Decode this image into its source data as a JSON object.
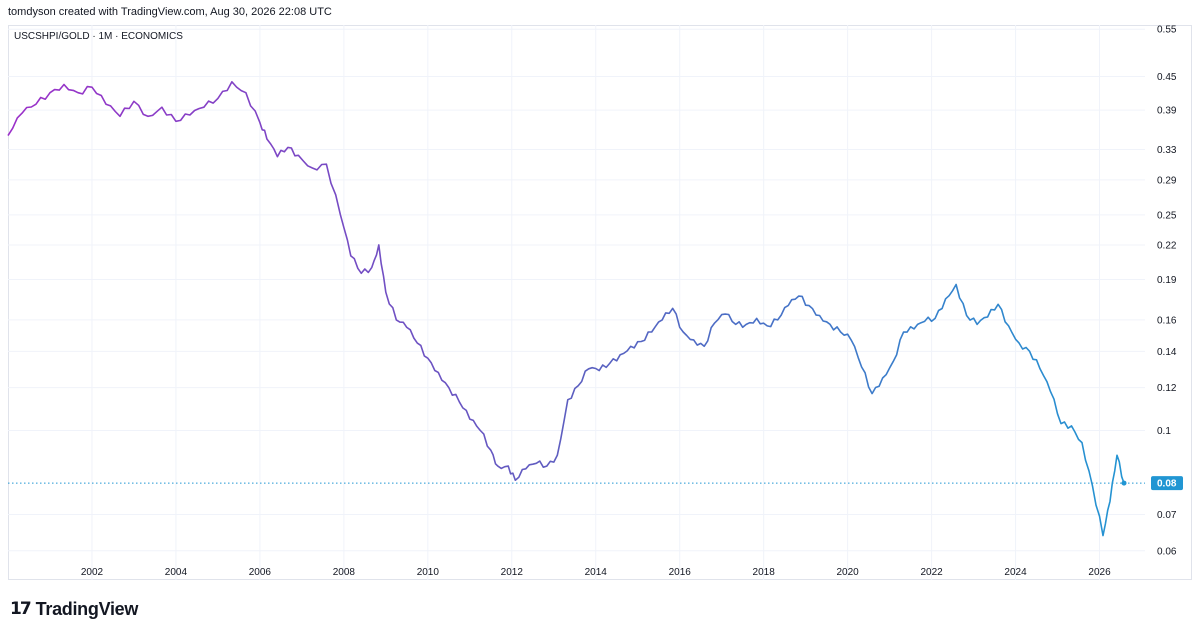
{
  "header": {
    "attribution": "tomdyson created with TradingView.com, Aug 30, 2026 22:08 UTC"
  },
  "symbol": {
    "label": "USCSHPI/GOLD · 1M · ECONOMICS"
  },
  "footer": {
    "brand_mark": "17",
    "brand_name": "TradingView"
  },
  "colors": {
    "line_start": "#9b30c9",
    "line_mid": "#5c5fc0",
    "line_end": "#2196d3",
    "last_price_badge": "#2196d3",
    "grid": "#f0f3fa"
  },
  "chart_data": {
    "type": "line",
    "title": "USCSHPI/GOLD · 1M · ECONOMICS",
    "xlabel": "",
    "ylabel": "",
    "y_scale": "log",
    "ylim": [
      0.053,
      0.56
    ],
    "xlim": [
      "2000-01",
      "2027-02"
    ],
    "grid": true,
    "x_ticks": [
      "2002",
      "2004",
      "2006",
      "2008",
      "2010",
      "2012",
      "2014",
      "2016",
      "2018",
      "2020",
      "2022",
      "2024",
      "2026"
    ],
    "y_ticks": [
      "0.55",
      "0.45",
      "0.39",
      "0.33",
      "0.29",
      "0.25",
      "0.22",
      "0.19",
      "0.16",
      "0.14",
      "0.12",
      "0.1",
      "0.07",
      "0.06"
    ],
    "last_value_label": "0.08",
    "last_value": 0.08,
    "series": [
      {
        "points": [
          [
            "2000-01",
            0.35
          ],
          [
            "2000-05",
            0.385
          ],
          [
            "2000-09",
            0.4
          ],
          [
            "2001-01",
            0.42
          ],
          [
            "2001-05",
            0.435
          ],
          [
            "2001-09",
            0.42
          ],
          [
            "2002-01",
            0.43
          ],
          [
            "2002-05",
            0.4
          ],
          [
            "2002-09",
            0.38
          ],
          [
            "2003-01",
            0.405
          ],
          [
            "2003-05",
            0.38
          ],
          [
            "2003-09",
            0.395
          ],
          [
            "2004-01",
            0.372
          ],
          [
            "2004-05",
            0.382
          ],
          [
            "2004-09",
            0.395
          ],
          [
            "2005-01",
            0.41
          ],
          [
            "2005-05",
            0.44
          ],
          [
            "2005-09",
            0.42
          ],
          [
            "2006-01",
            0.37
          ],
          [
            "2006-03",
            0.345
          ],
          [
            "2006-06",
            0.32
          ],
          [
            "2006-09",
            0.333
          ],
          [
            "2006-12",
            0.322
          ],
          [
            "2007-04",
            0.305
          ],
          [
            "2007-08",
            0.31
          ],
          [
            "2007-12",
            0.25
          ],
          [
            "2008-03",
            0.21
          ],
          [
            "2008-06",
            0.195
          ],
          [
            "2008-09",
            0.2
          ],
          [
            "2008-11",
            0.22
          ],
          [
            "2009-01",
            0.18
          ],
          [
            "2009-04",
            0.16
          ],
          [
            "2009-07",
            0.155
          ],
          [
            "2009-10",
            0.145
          ],
          [
            "2010-01",
            0.136
          ],
          [
            "2010-04",
            0.128
          ],
          [
            "2010-07",
            0.12
          ],
          [
            "2010-10",
            0.113
          ],
          [
            "2011-01",
            0.105
          ],
          [
            "2011-04",
            0.1
          ],
          [
            "2011-07",
            0.092
          ],
          [
            "2011-09",
            0.086
          ],
          [
            "2011-12",
            0.086
          ],
          [
            "2012-02",
            0.081
          ],
          [
            "2012-05",
            0.085
          ],
          [
            "2012-08",
            0.087
          ],
          [
            "2012-11",
            0.086
          ],
          [
            "2013-02",
            0.09
          ],
          [
            "2013-05",
            0.114
          ],
          [
            "2013-08",
            0.121
          ],
          [
            "2013-11",
            0.13
          ],
          [
            "2014-02",
            0.129
          ],
          [
            "2014-05",
            0.133
          ],
          [
            "2014-08",
            0.138
          ],
          [
            "2014-11",
            0.143
          ],
          [
            "2015-02",
            0.146
          ],
          [
            "2015-05",
            0.152
          ],
          [
            "2015-08",
            0.16
          ],
          [
            "2015-11",
            0.168
          ],
          [
            "2016-02",
            0.152
          ],
          [
            "2016-05",
            0.147
          ],
          [
            "2016-08",
            0.143
          ],
          [
            "2016-11",
            0.158
          ],
          [
            "2017-02",
            0.164
          ],
          [
            "2017-05",
            0.157
          ],
          [
            "2017-08",
            0.157
          ],
          [
            "2017-11",
            0.161
          ],
          [
            "2018-02",
            0.156
          ],
          [
            "2018-05",
            0.16
          ],
          [
            "2018-08",
            0.17
          ],
          [
            "2018-11",
            0.177
          ],
          [
            "2019-02",
            0.17
          ],
          [
            "2019-05",
            0.163
          ],
          [
            "2019-08",
            0.157
          ],
          [
            "2019-11",
            0.152
          ],
          [
            "2020-02",
            0.147
          ],
          [
            "2020-05",
            0.131
          ],
          [
            "2020-08",
            0.117
          ],
          [
            "2020-11",
            0.125
          ],
          [
            "2021-02",
            0.134
          ],
          [
            "2021-05",
            0.152
          ],
          [
            "2021-08",
            0.154
          ],
          [
            "2021-11",
            0.159
          ],
          [
            "2022-02",
            0.161
          ],
          [
            "2022-05",
            0.175
          ],
          [
            "2022-08",
            0.186
          ],
          [
            "2022-11",
            0.163
          ],
          [
            "2023-02",
            0.157
          ],
          [
            "2023-05",
            0.162
          ],
          [
            "2023-08",
            0.171
          ],
          [
            "2023-11",
            0.156
          ],
          [
            "2024-02",
            0.145
          ],
          [
            "2024-05",
            0.14
          ],
          [
            "2024-08",
            0.13
          ],
          [
            "2024-11",
            0.118
          ],
          [
            "2025-02",
            0.103
          ],
          [
            "2025-05",
            0.102
          ],
          [
            "2025-08",
            0.095
          ],
          [
            "2025-11",
            0.079
          ],
          [
            "2026-02",
            0.064
          ],
          [
            "2026-04",
            0.074
          ],
          [
            "2026-06",
            0.09
          ],
          [
            "2026-08",
            0.08
          ]
        ]
      }
    ]
  }
}
